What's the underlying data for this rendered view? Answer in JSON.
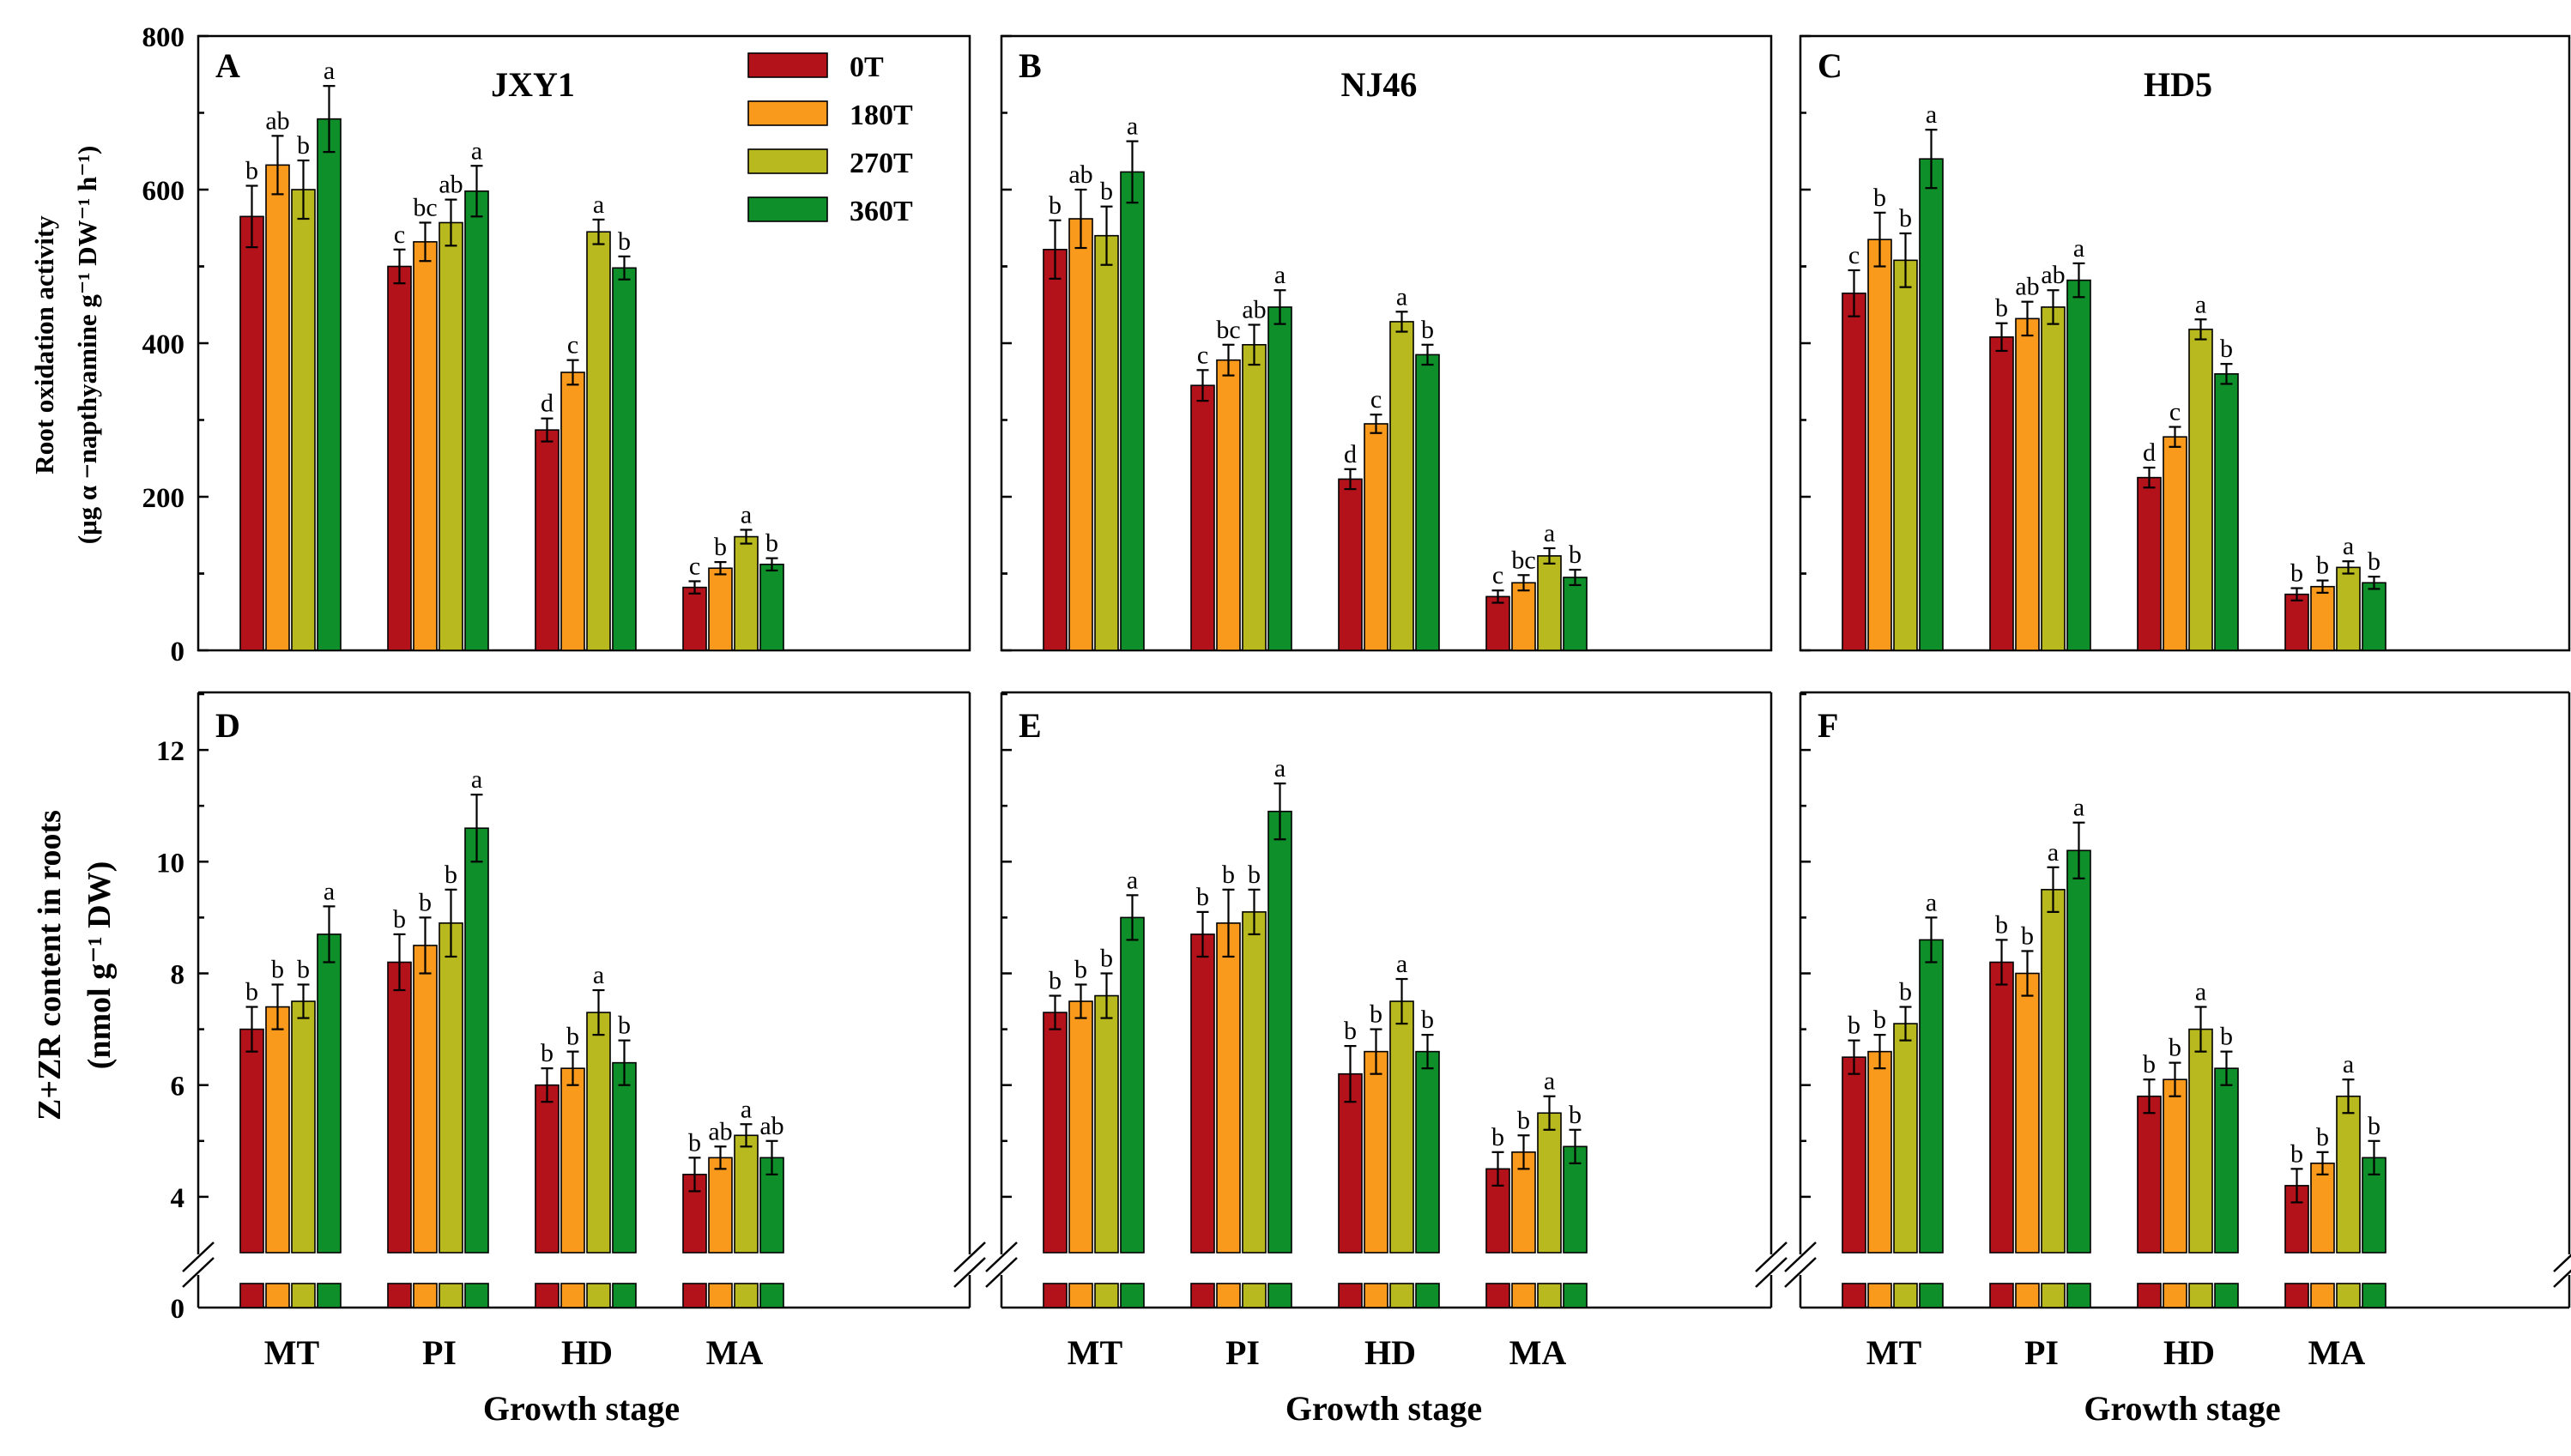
{
  "colors": {
    "0T": "#b3121b",
    "180T": "#f99a1c",
    "270T": "#b8b81f",
    "360T": "#0f8f2a"
  },
  "legend": [
    "0T",
    "180T",
    "270T",
    "360T"
  ],
  "categories": [
    "MT",
    "PI",
    "HD",
    "MA"
  ],
  "xlabel": "Growth stage",
  "row1": {
    "ylabel_line1": "Root oxidation activity",
    "ylabel_line2": "(μg α −napthyamine g⁻¹ DW⁻¹ h⁻¹)",
    "yticks": [
      "0",
      "200",
      "400",
      "600",
      "800"
    ]
  },
  "row2": {
    "ylabel_line1": "Z+ZR content in roots",
    "ylabel_line2": "(nmol g⁻¹ DW)",
    "yticks": [
      "0",
      "4",
      "6",
      "8",
      "10",
      "12"
    ]
  },
  "chart_data": [
    {
      "type": "bar",
      "panel": "A",
      "title": "JXY1",
      "categories": [
        "MT",
        "PI",
        "HD",
        "MA"
      ],
      "xlabel": "Growth stage",
      "ylabel": "Root oxidation activity (μg α −napthyamine g⁻¹ DW⁻¹ h⁻¹)",
      "ylim": [
        0,
        800
      ],
      "series": [
        {
          "name": "0T",
          "values": [
            565,
            500,
            287,
            82
          ],
          "errors": [
            40,
            22,
            15,
            8
          ],
          "letters": [
            "b",
            "c",
            "d",
            "c"
          ]
        },
        {
          "name": "180T",
          "values": [
            632,
            532,
            362,
            107
          ],
          "errors": [
            38,
            25,
            16,
            8
          ],
          "letters": [
            "ab",
            "bc",
            "c",
            "b"
          ]
        },
        {
          "name": "270T",
          "values": [
            600,
            557,
            545,
            148
          ],
          "errors": [
            38,
            30,
            16,
            9
          ],
          "letters": [
            "b",
            "ab",
            "a",
            "a"
          ]
        },
        {
          "name": "360T",
          "values": [
            692,
            598,
            498,
            112
          ],
          "errors": [
            43,
            33,
            15,
            8
          ],
          "letters": [
            "a",
            "a",
            "b",
            "b"
          ]
        }
      ]
    },
    {
      "type": "bar",
      "panel": "B",
      "title": "NJ46",
      "categories": [
        "MT",
        "PI",
        "HD",
        "MA"
      ],
      "xlabel": "Growth stage",
      "ylabel": "Root oxidation activity (μg α −napthyamine g⁻¹ DW⁻¹ h⁻¹)",
      "ylim": [
        0,
        800
      ],
      "series": [
        {
          "name": "0T",
          "values": [
            522,
            345,
            223,
            70
          ],
          "errors": [
            38,
            20,
            13,
            8
          ],
          "letters": [
            "b",
            "c",
            "d",
            "c"
          ]
        },
        {
          "name": "180T",
          "values": [
            562,
            378,
            295,
            88
          ],
          "errors": [
            38,
            20,
            12,
            10
          ],
          "letters": [
            "ab",
            "bc",
            "c",
            "bc"
          ]
        },
        {
          "name": "270T",
          "values": [
            540,
            398,
            428,
            123
          ],
          "errors": [
            38,
            26,
            13,
            10
          ],
          "letters": [
            "b",
            "ab",
            "a",
            "a"
          ]
        },
        {
          "name": "360T",
          "values": [
            623,
            447,
            385,
            95
          ],
          "errors": [
            40,
            22,
            13,
            10
          ],
          "letters": [
            "a",
            "a",
            "b",
            "b"
          ]
        }
      ]
    },
    {
      "type": "bar",
      "panel": "C",
      "title": "HD5",
      "categories": [
        "MT",
        "PI",
        "HD",
        "MA"
      ],
      "xlabel": "Growth stage",
      "ylabel": "Root oxidation activity (μg α −napthyamine g⁻¹ DW⁻¹ h⁻¹)",
      "ylim": [
        0,
        800
      ],
      "series": [
        {
          "name": "0T",
          "values": [
            465,
            408,
            225,
            73
          ],
          "errors": [
            30,
            18,
            13,
            8
          ],
          "letters": [
            "c",
            "b",
            "d",
            "b"
          ]
        },
        {
          "name": "180T",
          "values": [
            535,
            432,
            278,
            83
          ],
          "errors": [
            35,
            22,
            13,
            8
          ],
          "letters": [
            "b",
            "ab",
            "c",
            "b"
          ]
        },
        {
          "name": "270T",
          "values": [
            508,
            447,
            418,
            108
          ],
          "errors": [
            35,
            22,
            13,
            8
          ],
          "letters": [
            "b",
            "ab",
            "a",
            "a"
          ]
        },
        {
          "name": "360T",
          "values": [
            640,
            482,
            360,
            88
          ],
          "errors": [
            38,
            22,
            13,
            8
          ],
          "letters": [
            "a",
            "a",
            "b",
            "b"
          ]
        }
      ]
    },
    {
      "type": "bar",
      "panel": "D",
      "title": "",
      "categories": [
        "MT",
        "PI",
        "HD",
        "MA"
      ],
      "xlabel": "Growth stage",
      "ylabel": "Z+ZR content in roots (nmol g⁻¹ DW)",
      "ylim": [
        0,
        13
      ],
      "axis_break": [
        0,
        3
      ],
      "series": [
        {
          "name": "0T",
          "values": [
            7.0,
            8.2,
            6.0,
            4.4
          ],
          "errors": [
            0.4,
            0.5,
            0.3,
            0.3
          ],
          "letters": [
            "b",
            "b",
            "b",
            "b"
          ]
        },
        {
          "name": "180T",
          "values": [
            7.4,
            8.5,
            6.3,
            4.7
          ],
          "errors": [
            0.4,
            0.5,
            0.3,
            0.2
          ],
          "letters": [
            "b",
            "b",
            "b",
            "ab"
          ]
        },
        {
          "name": "270T",
          "values": [
            7.5,
            8.9,
            7.3,
            5.1
          ],
          "errors": [
            0.3,
            0.6,
            0.4,
            0.2
          ],
          "letters": [
            "b",
            "b",
            "a",
            "a"
          ]
        },
        {
          "name": "360T",
          "values": [
            8.7,
            10.6,
            6.4,
            4.7
          ],
          "errors": [
            0.5,
            0.6,
            0.4,
            0.3
          ],
          "letters": [
            "a",
            "a",
            "b",
            "ab"
          ]
        }
      ]
    },
    {
      "type": "bar",
      "panel": "E",
      "title": "",
      "categories": [
        "MT",
        "PI",
        "HD",
        "MA"
      ],
      "xlabel": "Growth stage",
      "ylabel": "Z+ZR content in roots (nmol g⁻¹ DW)",
      "ylim": [
        0,
        13
      ],
      "axis_break": [
        0,
        3
      ],
      "series": [
        {
          "name": "0T",
          "values": [
            7.3,
            8.7,
            6.2,
            4.5
          ],
          "errors": [
            0.3,
            0.4,
            0.5,
            0.3
          ],
          "letters": [
            "b",
            "b",
            "b",
            "b"
          ]
        },
        {
          "name": "180T",
          "values": [
            7.5,
            8.9,
            6.6,
            4.8
          ],
          "errors": [
            0.3,
            0.6,
            0.4,
            0.3
          ],
          "letters": [
            "b",
            "b",
            "b",
            "b"
          ]
        },
        {
          "name": "270T",
          "values": [
            7.6,
            9.1,
            7.5,
            5.5
          ],
          "errors": [
            0.4,
            0.4,
            0.4,
            0.3
          ],
          "letters": [
            "b",
            "b",
            "a",
            "a"
          ]
        },
        {
          "name": "360T",
          "values": [
            9.0,
            10.9,
            6.6,
            4.9
          ],
          "errors": [
            0.4,
            0.5,
            0.3,
            0.3
          ],
          "letters": [
            "a",
            "a",
            "b",
            "b"
          ]
        }
      ]
    },
    {
      "type": "bar",
      "panel": "F",
      "title": "",
      "categories": [
        "MT",
        "PI",
        "HD",
        "MA"
      ],
      "xlabel": "Growth stage",
      "ylabel": "Z+ZR content in roots (nmol g⁻¹ DW)",
      "ylim": [
        0,
        13
      ],
      "axis_break": [
        0,
        3
      ],
      "series": [
        {
          "name": "0T",
          "values": [
            6.5,
            8.2,
            5.8,
            4.2
          ],
          "errors": [
            0.3,
            0.4,
            0.3,
            0.3
          ],
          "letters": [
            "b",
            "b",
            "b",
            "b"
          ]
        },
        {
          "name": "180T",
          "values": [
            6.6,
            8.0,
            6.1,
            4.6
          ],
          "errors": [
            0.3,
            0.4,
            0.3,
            0.2
          ],
          "letters": [
            "b",
            "b",
            "b",
            "b"
          ]
        },
        {
          "name": "270T",
          "values": [
            7.1,
            9.5,
            7.0,
            5.8
          ],
          "errors": [
            0.3,
            0.4,
            0.4,
            0.3
          ],
          "letters": [
            "b",
            "a",
            "a",
            "a"
          ]
        },
        {
          "name": "360T",
          "values": [
            8.6,
            10.2,
            6.3,
            4.7
          ],
          "errors": [
            0.4,
            0.5,
            0.3,
            0.3
          ],
          "letters": [
            "a",
            "a",
            "b",
            "b"
          ]
        }
      ]
    }
  ]
}
